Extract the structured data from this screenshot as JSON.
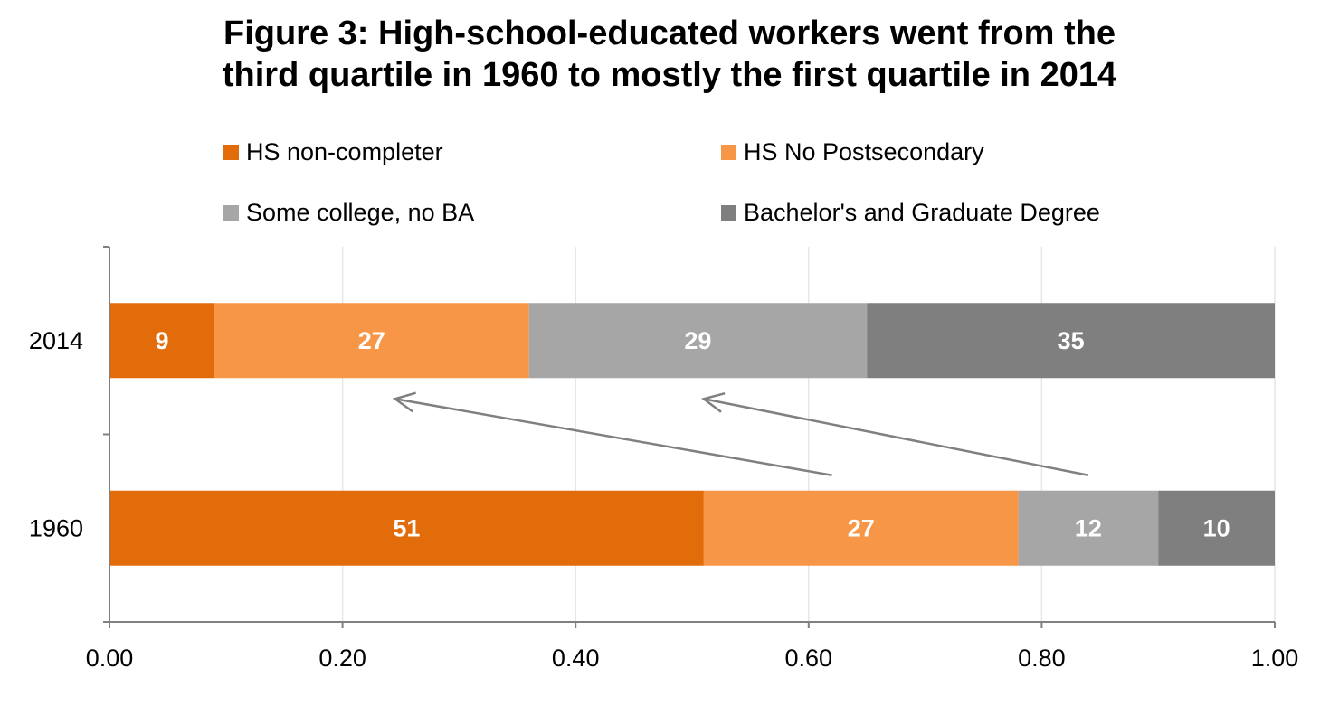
{
  "chart_data": {
    "type": "bar",
    "orientation": "horizontal",
    "stacked": true,
    "title_lines": [
      "Figure 3: High-school-educated workers went from the",
      "third quartile in 1960 to mostly the first quartile in 2014"
    ],
    "categories": [
      "2014",
      "1960"
    ],
    "series": [
      {
        "name": "HS non-completer",
        "color": "#e36c0a",
        "values": [
          0.09,
          0.51
        ],
        "labels": [
          "9",
          "51"
        ]
      },
      {
        "name": "HS No Postsecondary",
        "color": "#f79646",
        "values": [
          0.27,
          0.27
        ],
        "labels": [
          "27",
          "27"
        ]
      },
      {
        "name": "Some college, no BA",
        "color": "#a6a6a6",
        "values": [
          0.29,
          0.12
        ],
        "labels": [
          "29",
          "12"
        ]
      },
      {
        "name": "Bachelor's and Graduate Degree",
        "color": "#7f7f7f",
        "values": [
          0.35,
          0.1
        ],
        "labels": [
          "35",
          "10"
        ]
      }
    ],
    "xlim": [
      0,
      1
    ],
    "x_ticks": [
      "0.00",
      "0.20",
      "0.40",
      "0.60",
      "0.80",
      "1.00"
    ],
    "grid": true,
    "legend_position": "top",
    "annotations": [
      {
        "kind": "arrow",
        "from": {
          "category": "1960",
          "x": 0.62
        },
        "to": {
          "category": "2014",
          "x": 0.245
        },
        "color": "#808080"
      },
      {
        "kind": "arrow",
        "from": {
          "category": "1960",
          "x": 0.84
        },
        "to": {
          "category": "2014",
          "x": 0.51
        },
        "color": "#808080"
      }
    ]
  }
}
